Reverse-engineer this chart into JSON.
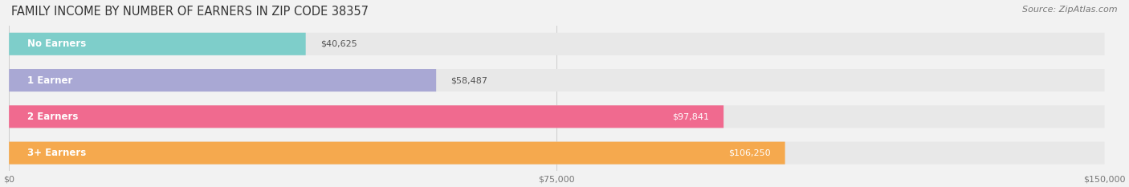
{
  "title": "FAMILY INCOME BY NUMBER OF EARNERS IN ZIP CODE 38357",
  "source": "Source: ZipAtlas.com",
  "categories": [
    "No Earners",
    "1 Earner",
    "2 Earners",
    "3+ Earners"
  ],
  "values": [
    40625,
    58487,
    97841,
    106250
  ],
  "bar_colors": [
    "#7ECECA",
    "#A9A8D4",
    "#F06A8F",
    "#F5A94E"
  ],
  "label_colors": [
    "#555555",
    "#555555",
    "#ffffff",
    "#ffffff"
  ],
  "xlim": [
    0,
    150000
  ],
  "xticks": [
    0,
    75000,
    150000
  ],
  "xtick_labels": [
    "$0",
    "$75,000",
    "$150,000"
  ],
  "background_color": "#f2f2f2",
  "bar_bg_color": "#e8e8e8",
  "figsize": [
    14.06,
    2.33
  ],
  "dpi": 100
}
